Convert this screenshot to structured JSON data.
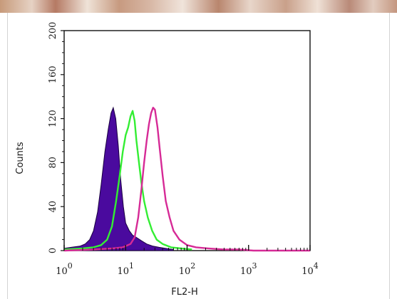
{
  "chart_data": {
    "type": "area",
    "xlabel": "FL2-H",
    "ylabel": "Counts",
    "x_scale": "log",
    "xlim": [
      1,
      10000
    ],
    "ylim": [
      0,
      200
    ],
    "x_ticks": [
      {
        "value": 1,
        "base": "10",
        "exp": "0"
      },
      {
        "value": 10,
        "base": "10",
        "exp": "1"
      },
      {
        "value": 100,
        "base": "10",
        "exp": "2"
      },
      {
        "value": 1000,
        "base": "10",
        "exp": "3"
      },
      {
        "value": 10000,
        "base": "10",
        "exp": "4"
      }
    ],
    "y_ticks": [
      "0",
      "40",
      "80",
      "120",
      "160",
      "200"
    ],
    "grid": false,
    "series": [
      {
        "style": "filled",
        "color": "#4a0a9e",
        "x": [
          1.0,
          1.3,
          1.8,
          2.2,
          2.6,
          3.0,
          3.5,
          4.0,
          4.6,
          5.2,
          5.8,
          6.3,
          6.9,
          7.6,
          8.3,
          9.2,
          10.0,
          11.5,
          13.0,
          15.0,
          18.0,
          22.0,
          28.0,
          35.0,
          45.0,
          60.0
        ],
        "values": [
          2,
          3,
          4,
          6,
          10,
          18,
          35,
          60,
          90,
          110,
          125,
          130,
          120,
          95,
          65,
          40,
          25,
          18,
          14,
          12,
          9,
          6,
          4,
          3,
          2,
          1
        ]
      },
      {
        "style": "line",
        "color": "#33ee33",
        "x": [
          1.0,
          2.0,
          3.0,
          4.0,
          5.0,
          6.0,
          7.0,
          8.0,
          9.0,
          10.0,
          11.0,
          12.0,
          13.0,
          14.0,
          15.0,
          16.5,
          18.0,
          20.0,
          23.0,
          27.0,
          32.0,
          40.0,
          55.0,
          80.0,
          120.0
        ],
        "values": [
          1,
          2,
          3,
          5,
          10,
          22,
          45,
          68,
          90,
          105,
          112,
          122,
          127,
          118,
          100,
          80,
          62,
          45,
          30,
          18,
          10,
          6,
          3,
          2,
          1
        ]
      },
      {
        "style": "line",
        "color": "#d62a96",
        "x": [
          1.0,
          3.0,
          6.0,
          9.0,
          12.0,
          14.0,
          16.0,
          18.0,
          20.0,
          22.0,
          24.0,
          26.0,
          28.0,
          30.0,
          33.0,
          36.0,
          40.0,
          45.0,
          52.0,
          60.0,
          75.0,
          100.0,
          140.0,
          220.0,
          400.0,
          700.0,
          1200.0,
          2500.0,
          5000.0,
          10000.0
        ],
        "values": [
          0,
          1,
          2,
          3,
          6,
          12,
          30,
          55,
          80,
          100,
          115,
          125,
          130,
          128,
          112,
          92,
          68,
          45,
          30,
          18,
          10,
          5,
          3,
          2,
          1,
          1,
          0,
          0,
          0,
          0
        ]
      }
    ]
  }
}
